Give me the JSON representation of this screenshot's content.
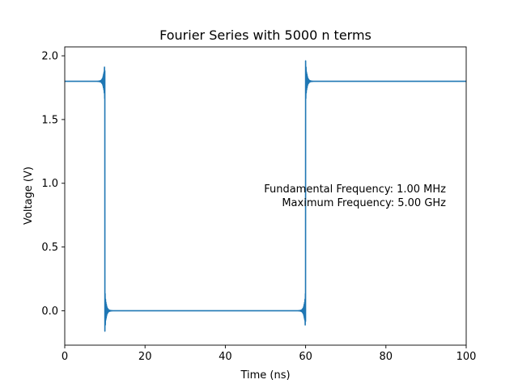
{
  "chart_data": {
    "type": "line",
    "title": "Fourier Series with 5000 n terms",
    "xlabel": "Time (ns)",
    "ylabel": "Voltage (V)",
    "xlim": [
      0,
      100
    ],
    "ylim": [
      -0.27,
      2.07
    ],
    "x_ticks": [
      0,
      20,
      40,
      60,
      80,
      100
    ],
    "x_tick_labels": [
      "0",
      "20",
      "40",
      "60",
      "80",
      "100"
    ],
    "y_ticks": [
      0.0,
      0.5,
      1.0,
      1.5,
      2.0
    ],
    "y_tick_labels": [
      "0.0",
      "0.5",
      "1.0",
      "1.5",
      "2.0"
    ],
    "grid": false,
    "legend": "none",
    "annotation": {
      "lines": [
        "Fundamental Frequency: 1.00 MHz",
        "Maximum Frequency: 5.00 GHz"
      ]
    },
    "series": [
      {
        "color": "#1f77b4",
        "high_level": 1.8,
        "low_level": 0.0,
        "rise_time": 60,
        "fall_time": 10,
        "overshoot_peak": 1.96,
        "undershoot_peak": -0.16,
        "x": [
          0,
          10,
          10,
          60,
          60,
          100
        ],
        "y": [
          1.8,
          1.8,
          0.0,
          0.0,
          1.8,
          1.8
        ]
      }
    ]
  }
}
